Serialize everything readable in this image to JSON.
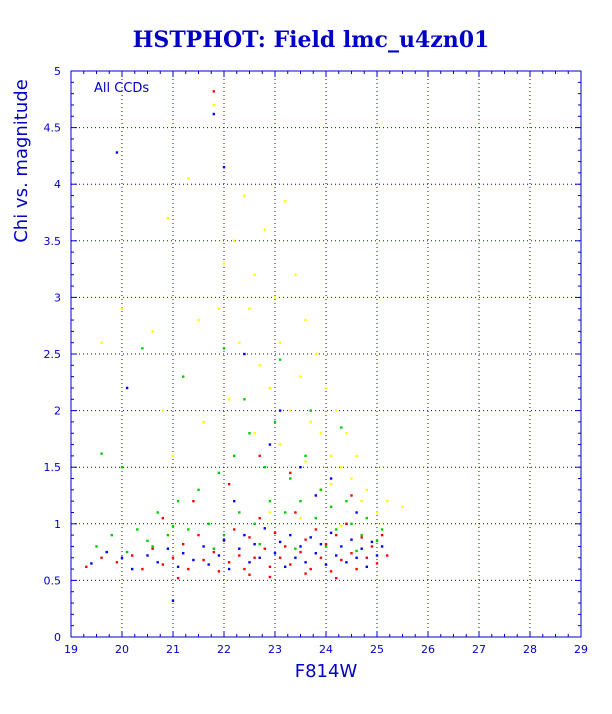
{
  "colors": {
    "axis": "#0000c8",
    "grid": "#0000c8",
    "title": "#0000c8",
    "series": [
      "#ff0000",
      "#00cc00",
      "#0000ff",
      "#ffff00"
    ]
  },
  "chart_data": {
    "type": "scatter",
    "title": "HSTPHOT: Field lmc_u4zn01",
    "xlabel": "F814W",
    "ylabel": "Chi vs. magnitude",
    "annotation": "All CCDs",
    "xlim": [
      19,
      29
    ],
    "ylim": [
      0,
      5
    ],
    "xticks": [
      19,
      20,
      21,
      22,
      23,
      24,
      25,
      26,
      27,
      28,
      29
    ],
    "yticks": [
      0,
      0.5,
      1,
      1.5,
      2,
      2.5,
      3,
      3.5,
      4,
      4.5,
      5
    ],
    "ytick_labels": [
      "0",
      "0.5",
      "1",
      "1.5",
      "2",
      "2.5",
      "3",
      "3.5",
      "4",
      "4.5",
      "5"
    ],
    "grid": true,
    "series_colors": [
      "red",
      "green",
      "blue",
      "yellow"
    ],
    "series": [
      {
        "color": "#ff0000",
        "points": [
          [
            19.3,
            0.62
          ],
          [
            19.6,
            0.7
          ],
          [
            19.9,
            0.66
          ],
          [
            20.2,
            0.72
          ],
          [
            20.4,
            0.6
          ],
          [
            20.6,
            0.78
          ],
          [
            20.8,
            0.64
          ],
          [
            21.0,
            0.7
          ],
          [
            21.2,
            0.82
          ],
          [
            21.3,
            0.6
          ],
          [
            21.5,
            0.9
          ],
          [
            21.6,
            0.68
          ],
          [
            21.8,
            0.75
          ],
          [
            21.9,
            0.58
          ],
          [
            22.0,
            0.85
          ],
          [
            22.1,
            0.66
          ],
          [
            22.2,
            0.95
          ],
          [
            22.3,
            0.72
          ],
          [
            22.4,
            0.6
          ],
          [
            22.5,
            0.88
          ],
          [
            22.6,
            0.7
          ],
          [
            22.7,
            1.05
          ],
          [
            22.8,
            0.78
          ],
          [
            22.9,
            0.62
          ],
          [
            23.0,
            0.92
          ],
          [
            23.1,
            0.7
          ],
          [
            23.2,
            0.8
          ],
          [
            23.3,
            0.64
          ],
          [
            23.4,
            1.1
          ],
          [
            23.5,
            0.75
          ],
          [
            23.6,
            0.86
          ],
          [
            23.7,
            0.6
          ],
          [
            23.8,
            0.95
          ],
          [
            23.9,
            0.7
          ],
          [
            24.0,
            0.82
          ],
          [
            24.1,
            0.58
          ],
          [
            24.2,
            0.9
          ],
          [
            24.3,
            0.68
          ],
          [
            24.4,
            1.0
          ],
          [
            24.5,
            0.74
          ],
          [
            24.6,
            0.6
          ],
          [
            24.7,
            0.88
          ],
          [
            24.8,
            0.7
          ],
          [
            24.9,
            0.8
          ],
          [
            25.0,
            0.65
          ],
          [
            25.1,
            0.9
          ],
          [
            25.2,
            0.72
          ],
          [
            21.8,
            4.82
          ],
          [
            22.1,
            1.35
          ],
          [
            22.7,
            1.6
          ],
          [
            23.3,
            1.45
          ],
          [
            23.9,
            1.3
          ],
          [
            21.4,
            1.2
          ],
          [
            20.8,
            1.05
          ],
          [
            24.5,
            1.25
          ],
          [
            22.5,
            0.55
          ],
          [
            23.6,
            0.56
          ],
          [
            24.2,
            0.52
          ],
          [
            21.1,
            0.52
          ],
          [
            22.9,
            0.53
          ]
        ]
      },
      {
        "color": "#00cc00",
        "points": [
          [
            19.5,
            0.8
          ],
          [
            19.8,
            0.9
          ],
          [
            20.1,
            0.75
          ],
          [
            20.3,
            0.95
          ],
          [
            20.5,
            0.85
          ],
          [
            20.7,
            1.1
          ],
          [
            20.9,
            0.9
          ],
          [
            21.1,
            1.2
          ],
          [
            21.3,
            0.95
          ],
          [
            21.5,
            1.3
          ],
          [
            21.7,
            1.0
          ],
          [
            21.9,
            1.45
          ],
          [
            22.0,
            0.9
          ],
          [
            22.2,
            1.6
          ],
          [
            22.3,
            1.1
          ],
          [
            22.5,
            1.8
          ],
          [
            22.6,
            1.0
          ],
          [
            22.8,
            1.5
          ],
          [
            22.9,
            1.2
          ],
          [
            23.0,
            1.9
          ],
          [
            23.2,
            1.1
          ],
          [
            23.3,
            1.4
          ],
          [
            23.5,
            1.2
          ],
          [
            23.6,
            1.6
          ],
          [
            23.8,
            1.05
          ],
          [
            23.9,
            1.3
          ],
          [
            24.1,
            1.15
          ],
          [
            24.2,
            0.95
          ],
          [
            24.4,
            1.2
          ],
          [
            24.5,
            1.0
          ],
          [
            24.7,
            0.9
          ],
          [
            24.8,
            1.05
          ],
          [
            25.0,
            0.85
          ],
          [
            25.1,
            0.95
          ],
          [
            19.6,
            1.62
          ],
          [
            20.0,
            1.5
          ],
          [
            20.4,
            2.55
          ],
          [
            21.2,
            2.3
          ],
          [
            22.0,
            2.55
          ],
          [
            22.4,
            2.1
          ],
          [
            23.1,
            2.45
          ],
          [
            23.7,
            2.0
          ],
          [
            24.3,
            1.85
          ],
          [
            20.6,
            0.8
          ],
          [
            21.8,
            0.78
          ],
          [
            22.7,
            0.82
          ],
          [
            23.4,
            0.78
          ],
          [
            24.0,
            0.8
          ],
          [
            24.6,
            0.76
          ],
          [
            21.0,
            0.98
          ]
        ]
      },
      {
        "color": "#0000ff",
        "points": [
          [
            19.4,
            0.65
          ],
          [
            19.7,
            0.75
          ],
          [
            20.0,
            0.7
          ],
          [
            20.2,
            0.6
          ],
          [
            20.5,
            0.72
          ],
          [
            20.7,
            0.66
          ],
          [
            20.9,
            0.78
          ],
          [
            21.1,
            0.62
          ],
          [
            21.2,
            0.74
          ],
          [
            21.4,
            0.68
          ],
          [
            21.6,
            0.8
          ],
          [
            21.7,
            0.64
          ],
          [
            21.9,
            0.72
          ],
          [
            22.0,
            0.86
          ],
          [
            22.1,
            0.6
          ],
          [
            22.3,
            0.78
          ],
          [
            22.4,
            0.9
          ],
          [
            22.5,
            0.66
          ],
          [
            22.6,
            0.82
          ],
          [
            22.7,
            0.7
          ],
          [
            22.8,
            0.96
          ],
          [
            23.0,
            0.74
          ],
          [
            23.1,
            0.84
          ],
          [
            23.2,
            0.62
          ],
          [
            23.3,
            0.9
          ],
          [
            23.4,
            0.7
          ],
          [
            23.5,
            0.8
          ],
          [
            23.6,
            0.66
          ],
          [
            23.7,
            0.88
          ],
          [
            23.8,
            0.74
          ],
          [
            23.9,
            0.82
          ],
          [
            24.0,
            0.64
          ],
          [
            24.1,
            0.92
          ],
          [
            24.2,
            0.72
          ],
          [
            24.3,
            0.8
          ],
          [
            24.4,
            0.66
          ],
          [
            24.5,
            0.86
          ],
          [
            24.6,
            0.7
          ],
          [
            24.7,
            0.78
          ],
          [
            24.8,
            0.62
          ],
          [
            24.9,
            0.84
          ],
          [
            25.0,
            0.72
          ],
          [
            25.1,
            0.8
          ],
          [
            21.8,
            4.62
          ],
          [
            19.9,
            4.28
          ],
          [
            20.1,
            2.2
          ],
          [
            22.0,
            4.15
          ],
          [
            22.4,
            2.5
          ],
          [
            23.1,
            2.0
          ],
          [
            22.9,
            1.7
          ],
          [
            23.5,
            1.5
          ],
          [
            24.1,
            1.4
          ],
          [
            21.0,
            0.32
          ],
          [
            22.2,
            1.2
          ],
          [
            23.8,
            1.25
          ],
          [
            24.6,
            1.1
          ]
        ]
      },
      {
        "color": "#ffff00",
        "points": [
          [
            19.6,
            2.6
          ],
          [
            20.0,
            2.9
          ],
          [
            20.6,
            2.7
          ],
          [
            20.9,
            3.7
          ],
          [
            21.3,
            4.05
          ],
          [
            21.5,
            2.8
          ],
          [
            21.8,
            4.7
          ],
          [
            22.0,
            3.3
          ],
          [
            22.2,
            3.5
          ],
          [
            22.3,
            2.6
          ],
          [
            22.4,
            3.9
          ],
          [
            22.5,
            2.9
          ],
          [
            22.6,
            3.2
          ],
          [
            22.7,
            2.4
          ],
          [
            22.8,
            3.6
          ],
          [
            22.9,
            2.2
          ],
          [
            23.0,
            3.0
          ],
          [
            23.1,
            2.6
          ],
          [
            23.2,
            3.85
          ],
          [
            23.3,
            2.0
          ],
          [
            23.4,
            3.2
          ],
          [
            23.5,
            2.3
          ],
          [
            23.6,
            2.8
          ],
          [
            23.7,
            1.9
          ],
          [
            23.8,
            2.5
          ],
          [
            23.9,
            1.8
          ],
          [
            24.0,
            2.2
          ],
          [
            24.1,
            1.6
          ],
          [
            24.2,
            2.0
          ],
          [
            24.3,
            1.5
          ],
          [
            24.4,
            1.8
          ],
          [
            24.5,
            1.4
          ],
          [
            24.6,
            1.6
          ],
          [
            24.7,
            1.2
          ],
          [
            24.8,
            1.3
          ],
          [
            25.0,
            1.1
          ],
          [
            25.2,
            1.2
          ],
          [
            25.5,
            1.15
          ],
          [
            21.6,
            1.9
          ],
          [
            22.1,
            2.1
          ],
          [
            22.6,
            1.8
          ],
          [
            23.1,
            1.7
          ],
          [
            23.6,
            1.55
          ],
          [
            24.1,
            1.35
          ],
          [
            22.9,
            1.1
          ],
          [
            23.5,
            1.05
          ],
          [
            24.3,
            0.98
          ],
          [
            20.8,
            2.0
          ],
          [
            21.0,
            1.6
          ],
          [
            21.9,
            2.9
          ]
        ]
      }
    ]
  }
}
